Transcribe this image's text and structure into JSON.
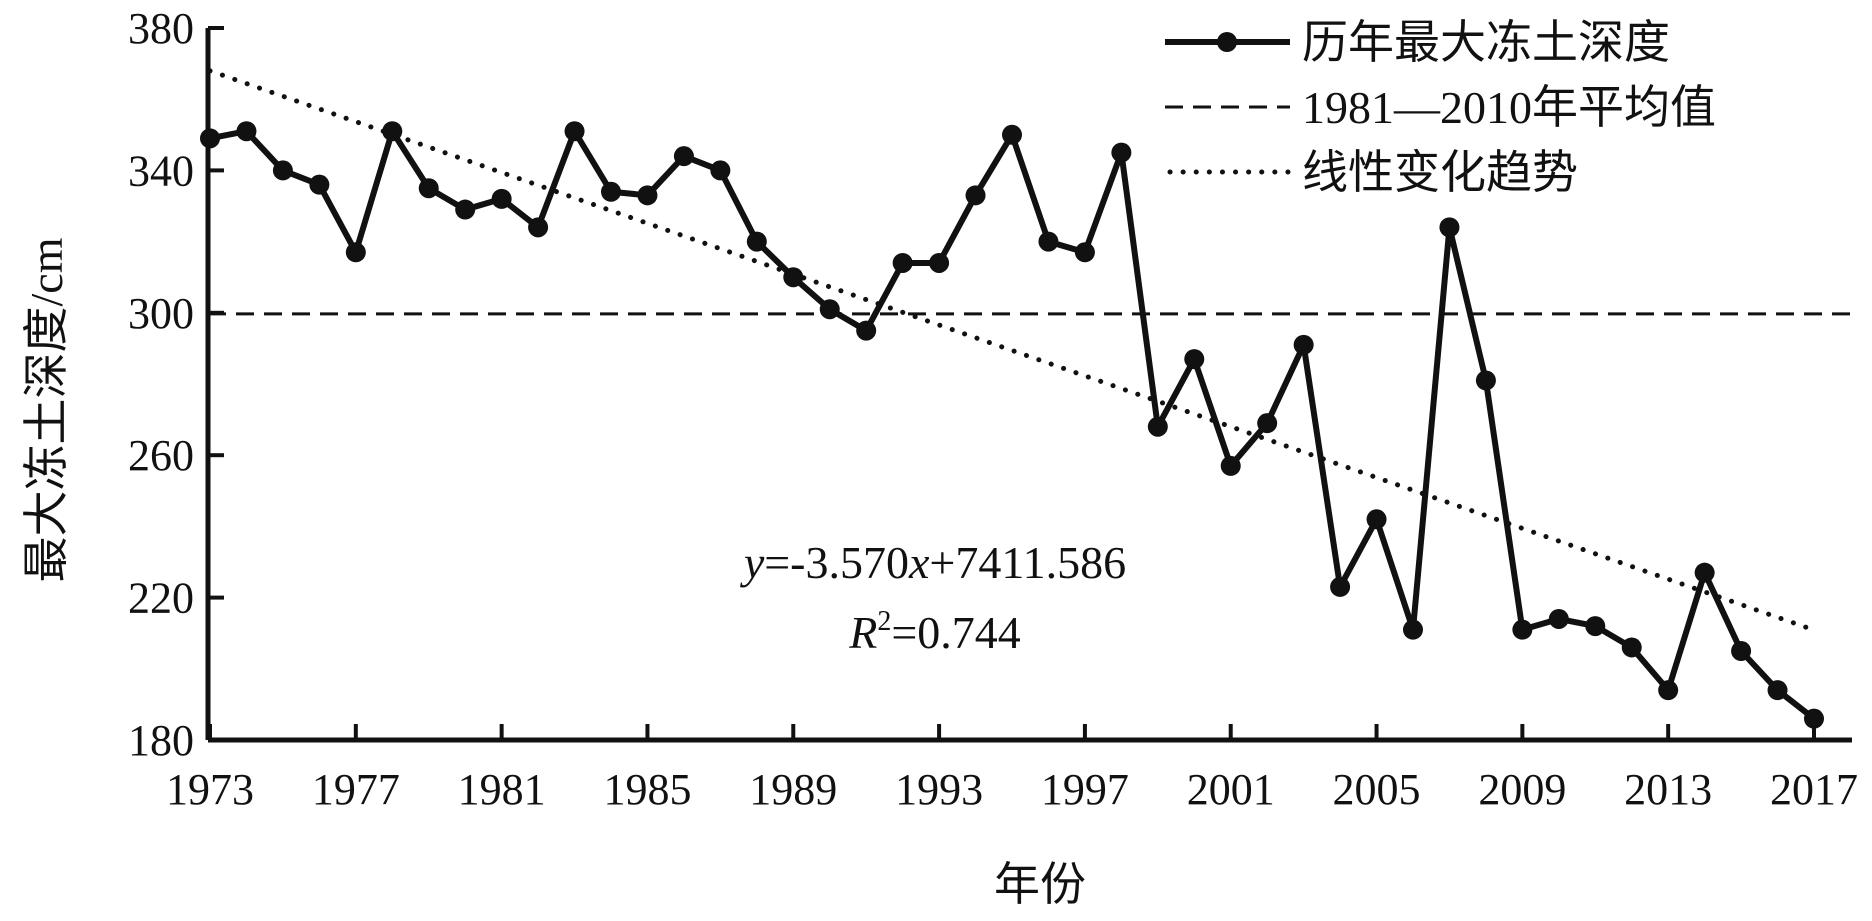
{
  "chart_data": {
    "type": "line",
    "xlabel": "年份",
    "ylabel": "最大冻土深度/cm",
    "xlim": [
      1973,
      2017
    ],
    "ylim": [
      180,
      380
    ],
    "x_ticks": [
      1973,
      1977,
      1981,
      1985,
      1989,
      1993,
      1997,
      2001,
      2005,
      2009,
      2013,
      2017
    ],
    "y_ticks": [
      180,
      220,
      260,
      300,
      340,
      380
    ],
    "legend_position": "top-right",
    "grid": false,
    "series": [
      {
        "name": "历年最大冻土深度",
        "style": "solid-with-markers",
        "color": "#111111",
        "x": [
          1973,
          1974,
          1975,
          1976,
          1977,
          1978,
          1979,
          1980,
          1981,
          1982,
          1983,
          1984,
          1985,
          1986,
          1987,
          1988,
          1989,
          1990,
          1991,
          1992,
          1993,
          1994,
          1995,
          1996,
          1997,
          1998,
          1999,
          2000,
          2001,
          2002,
          2003,
          2004,
          2005,
          2006,
          2007,
          2008,
          2009,
          2010,
          2011,
          2012,
          2013,
          2014,
          2015,
          2016,
          2017
        ],
        "values": [
          349,
          351,
          340,
          336,
          317,
          351,
          335,
          329,
          332,
          324,
          351,
          334,
          333,
          344,
          340,
          320,
          310,
          301,
          295,
          314,
          314,
          333,
          350,
          320,
          317,
          345,
          268,
          287,
          257,
          269,
          291,
          223,
          242,
          211,
          324,
          281,
          211,
          214,
          212,
          206,
          194,
          227,
          205,
          194,
          186
        ]
      },
      {
        "name": "1981—2010年平均值",
        "style": "dashed",
        "color": "#111111",
        "value": 299.7
      },
      {
        "name": "线性变化趋势",
        "style": "dotted",
        "color": "#111111",
        "slope": -3.57,
        "intercept": 7411.586
      }
    ],
    "annotations": {
      "equation_y": "y",
      "equation_rest": "=-3.570",
      "equation_x": "x",
      "equation_tail": "+7411.586",
      "r2_R": "R",
      "r2_sup": "2",
      "r2_rest": "=0.744"
    }
  }
}
